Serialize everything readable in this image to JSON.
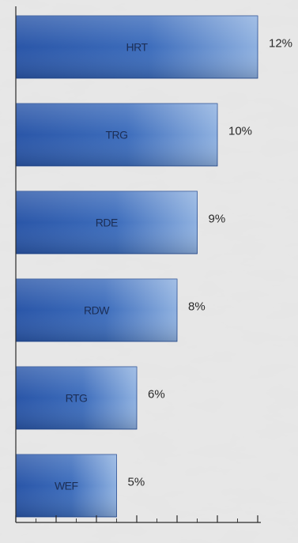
{
  "chart_data": {
    "type": "bar",
    "orientation": "horizontal",
    "categories": [
      "HRT",
      "TRG",
      "RDE",
      "RDW",
      "RTG",
      "WEF"
    ],
    "values": [
      12,
      10,
      9,
      8,
      6,
      5
    ],
    "value_labels": [
      "12%",
      "10%",
      "9%",
      "8%",
      "6%",
      "5%"
    ],
    "xlim": [
      0,
      12
    ],
    "grid": false,
    "legend": "none"
  },
  "colors": {
    "bar_dark": "#2a56a8",
    "bar_light": "#8fb1e0",
    "axis": "#2b2b2b",
    "label_text": "#1c2e55",
    "value_text": "#2a2a2a",
    "background": "#dcdcdc"
  }
}
